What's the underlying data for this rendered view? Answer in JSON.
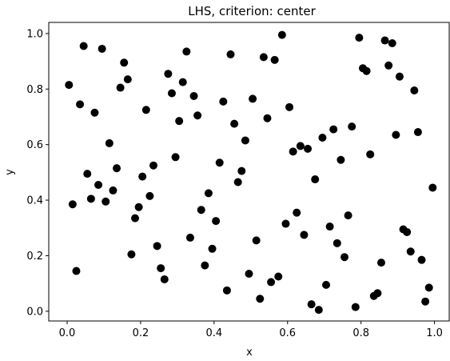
{
  "chart_data": {
    "type": "scatter",
    "title": "LHS, criterion: center",
    "xlabel": "x",
    "ylabel": "y",
    "xlim": [
      -0.05,
      1.04
    ],
    "ylim": [
      -0.035,
      1.04
    ],
    "xticks": [
      0.0,
      0.2,
      0.4,
      0.6,
      0.8,
      1.0
    ],
    "yticks": [
      0.0,
      0.2,
      0.4,
      0.6,
      0.8,
      1.0
    ],
    "xtick_labels": [
      "0.0",
      "0.2",
      "0.4",
      "0.6",
      "0.8",
      "1.0"
    ],
    "ytick_labels": [
      "0.0",
      "0.2",
      "0.4",
      "0.6",
      "0.8",
      "1.0"
    ],
    "grid": false,
    "marker_color": "#000000",
    "points": [
      {
        "x": 0.005,
        "y": 0.815
      },
      {
        "x": 0.015,
        "y": 0.385
      },
      {
        "x": 0.025,
        "y": 0.145
      },
      {
        "x": 0.035,
        "y": 0.745
      },
      {
        "x": 0.045,
        "y": 0.955
      },
      {
        "x": 0.055,
        "y": 0.495
      },
      {
        "x": 0.065,
        "y": 0.405
      },
      {
        "x": 0.075,
        "y": 0.715
      },
      {
        "x": 0.085,
        "y": 0.455
      },
      {
        "x": 0.095,
        "y": 0.945
      },
      {
        "x": 0.105,
        "y": 0.395
      },
      {
        "x": 0.115,
        "y": 0.605
      },
      {
        "x": 0.125,
        "y": 0.435
      },
      {
        "x": 0.135,
        "y": 0.515
      },
      {
        "x": 0.145,
        "y": 0.805
      },
      {
        "x": 0.155,
        "y": 0.895
      },
      {
        "x": 0.165,
        "y": 0.835
      },
      {
        "x": 0.175,
        "y": 0.205
      },
      {
        "x": 0.185,
        "y": 0.335
      },
      {
        "x": 0.195,
        "y": 0.375
      },
      {
        "x": 0.205,
        "y": 0.485
      },
      {
        "x": 0.215,
        "y": 0.725
      },
      {
        "x": 0.225,
        "y": 0.415
      },
      {
        "x": 0.235,
        "y": 0.525
      },
      {
        "x": 0.245,
        "y": 0.235
      },
      {
        "x": 0.255,
        "y": 0.155
      },
      {
        "x": 0.265,
        "y": 0.115
      },
      {
        "x": 0.275,
        "y": 0.855
      },
      {
        "x": 0.285,
        "y": 0.785
      },
      {
        "x": 0.295,
        "y": 0.555
      },
      {
        "x": 0.305,
        "y": 0.685
      },
      {
        "x": 0.315,
        "y": 0.825
      },
      {
        "x": 0.325,
        "y": 0.935
      },
      {
        "x": 0.335,
        "y": 0.265
      },
      {
        "x": 0.345,
        "y": 0.775
      },
      {
        "x": 0.355,
        "y": 0.705
      },
      {
        "x": 0.365,
        "y": 0.365
      },
      {
        "x": 0.375,
        "y": 0.165
      },
      {
        "x": 0.385,
        "y": 0.425
      },
      {
        "x": 0.395,
        "y": 0.225
      },
      {
        "x": 0.405,
        "y": 0.325
      },
      {
        "x": 0.415,
        "y": 0.535
      },
      {
        "x": 0.425,
        "y": 0.755
      },
      {
        "x": 0.435,
        "y": 0.075
      },
      {
        "x": 0.445,
        "y": 0.925
      },
      {
        "x": 0.455,
        "y": 0.675
      },
      {
        "x": 0.465,
        "y": 0.465
      },
      {
        "x": 0.475,
        "y": 0.505
      },
      {
        "x": 0.485,
        "y": 0.615
      },
      {
        "x": 0.495,
        "y": 0.135
      },
      {
        "x": 0.505,
        "y": 0.765
      },
      {
        "x": 0.515,
        "y": 0.255
      },
      {
        "x": 0.525,
        "y": 0.045
      },
      {
        "x": 0.535,
        "y": 0.915
      },
      {
        "x": 0.545,
        "y": 0.695
      },
      {
        "x": 0.555,
        "y": 0.105
      },
      {
        "x": 0.565,
        "y": 0.905
      },
      {
        "x": 0.575,
        "y": 0.125
      },
      {
        "x": 0.585,
        "y": 0.995
      },
      {
        "x": 0.595,
        "y": 0.315
      },
      {
        "x": 0.605,
        "y": 0.735
      },
      {
        "x": 0.615,
        "y": 0.575
      },
      {
        "x": 0.625,
        "y": 0.355
      },
      {
        "x": 0.635,
        "y": 0.595
      },
      {
        "x": 0.645,
        "y": 0.275
      },
      {
        "x": 0.655,
        "y": 0.585
      },
      {
        "x": 0.665,
        "y": 0.025
      },
      {
        "x": 0.675,
        "y": 0.475
      },
      {
        "x": 0.685,
        "y": 0.005
      },
      {
        "x": 0.695,
        "y": 0.625
      },
      {
        "x": 0.705,
        "y": 0.095
      },
      {
        "x": 0.715,
        "y": 0.305
      },
      {
        "x": 0.725,
        "y": 0.655
      },
      {
        "x": 0.735,
        "y": 0.245
      },
      {
        "x": 0.745,
        "y": 0.545
      },
      {
        "x": 0.755,
        "y": 0.195
      },
      {
        "x": 0.765,
        "y": 0.345
      },
      {
        "x": 0.775,
        "y": 0.665
      },
      {
        "x": 0.785,
        "y": 0.015
      },
      {
        "x": 0.795,
        "y": 0.985
      },
      {
        "x": 0.805,
        "y": 0.875
      },
      {
        "x": 0.815,
        "y": 0.865
      },
      {
        "x": 0.825,
        "y": 0.565
      },
      {
        "x": 0.835,
        "y": 0.055
      },
      {
        "x": 0.845,
        "y": 0.065
      },
      {
        "x": 0.855,
        "y": 0.175
      },
      {
        "x": 0.865,
        "y": 0.975
      },
      {
        "x": 0.875,
        "y": 0.885
      },
      {
        "x": 0.885,
        "y": 0.965
      },
      {
        "x": 0.895,
        "y": 0.635
      },
      {
        "x": 0.905,
        "y": 0.845
      },
      {
        "x": 0.915,
        "y": 0.295
      },
      {
        "x": 0.925,
        "y": 0.285
      },
      {
        "x": 0.935,
        "y": 0.215
      },
      {
        "x": 0.945,
        "y": 0.795
      },
      {
        "x": 0.955,
        "y": 0.645
      },
      {
        "x": 0.965,
        "y": 0.185
      },
      {
        "x": 0.975,
        "y": 0.035
      },
      {
        "x": 0.985,
        "y": 0.085
      },
      {
        "x": 0.995,
        "y": 0.445
      }
    ]
  }
}
